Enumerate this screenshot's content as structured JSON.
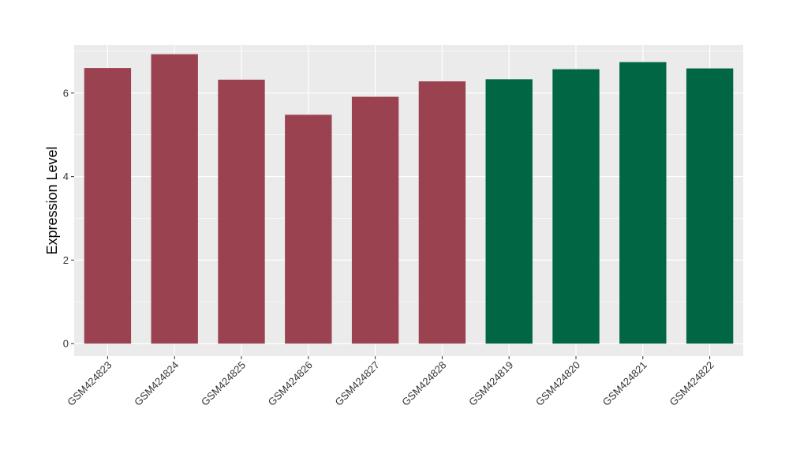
{
  "chart_data": {
    "type": "bar",
    "title": "",
    "xlabel": "",
    "ylabel": "Expression Level",
    "ylim": [
      -0.3,
      7.15
    ],
    "yticks": [
      0,
      2,
      4,
      6
    ],
    "grid": true,
    "legend": "none",
    "categories": [
      "GSM424823",
      "GSM424824",
      "GSM424825",
      "GSM424826",
      "GSM424827",
      "GSM424828",
      "GSM424819",
      "GSM424820",
      "GSM424821",
      "GSM424822"
    ],
    "values": [
      6.6,
      6.93,
      6.32,
      5.48,
      5.91,
      6.28,
      6.33,
      6.57,
      6.74,
      6.59
    ],
    "bar_colors": [
      "#9a4250",
      "#9a4250",
      "#9a4250",
      "#9a4250",
      "#9a4250",
      "#9a4250",
      "#006643",
      "#006643",
      "#006643",
      "#006643"
    ],
    "panel_color": "#ebebeb",
    "grid_color": "#ffffff"
  }
}
